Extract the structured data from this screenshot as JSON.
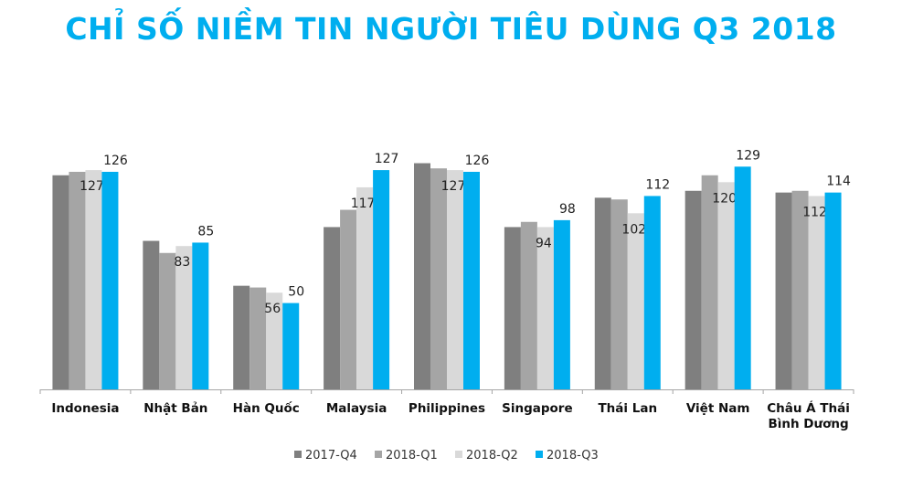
{
  "title": "CHỈ SỐ NIỀM TIN NGƯỜI TIÊU DÙNG Q3 2018",
  "chart_data": {
    "type": "bar",
    "title": "CHỈ SỐ NIỀM TIN NGƯỜI TIÊU DÙNG Q3 2018",
    "categories": [
      "Indonesia",
      "Nhật Bản",
      "Hàn Quốc",
      "Malaysia",
      "Philippines",
      "Singapore",
      "Thái Lan",
      "Việt Nam",
      "Châu Á  Thái Bình Dương"
    ],
    "series": [
      {
        "name": "2017-Q4",
        "color": "#7F7F7F",
        "values": [
          124,
          86,
          60,
          94,
          131,
          94,
          111,
          115,
          114
        ],
        "labeled": false
      },
      {
        "name": "2018-Q1",
        "color": "#A5A5A5",
        "values": [
          126,
          79,
          59,
          104,
          128,
          97,
          110,
          124,
          115
        ],
        "labeled": false
      },
      {
        "name": "2018-Q2",
        "color": "#D9D9D9",
        "values": [
          127,
          83,
          56,
          117,
          127,
          94,
          102,
          120,
          112
        ],
        "labeled": true
      },
      {
        "name": "2018-Q3",
        "color": "#00AEEF",
        "values": [
          126,
          85,
          50,
          127,
          126,
          98,
          112,
          129,
          114
        ],
        "labeled": true
      }
    ],
    "xlabel": "",
    "ylabel": "",
    "ylim": [
      0,
      135
    ],
    "grid": false,
    "legend": "bottom"
  }
}
